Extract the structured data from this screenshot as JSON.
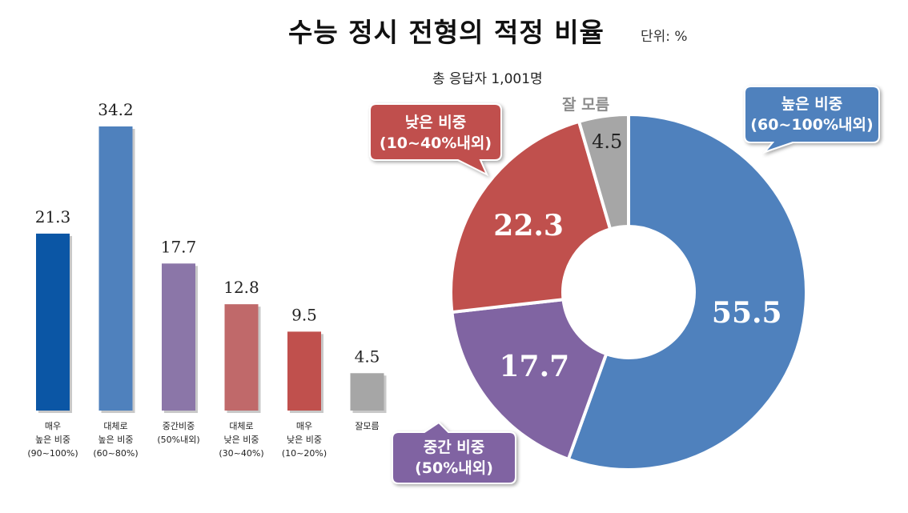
{
  "header": {
    "title": "수능 정시 전형의 적정 비율",
    "unit": "단위: %",
    "respondents": "총 응답자 1,001명"
  },
  "chart_data": [
    {
      "type": "bar",
      "categories": [
        [
          "매우",
          "높은 비중",
          "(90~100%)"
        ],
        [
          "대체로",
          "높은 비중",
          "(60~80%)"
        ],
        [
          "중간비중",
          "(50%내외)"
        ],
        [
          "대체로",
          "낮은 비중",
          "(30~40%)"
        ],
        [
          "매우",
          "낮은 비중",
          "(10~20%)"
        ],
        [
          "잘모름"
        ]
      ],
      "values": [
        21.3,
        34.2,
        17.7,
        12.8,
        9.5,
        4.5
      ],
      "value_labels": [
        "21.3",
        "34.2",
        "17.7",
        "12.8",
        "9.5",
        "4.5"
      ],
      "colors": [
        "#0b56a5",
        "#4f81bd",
        "#8b76a8",
        "#c0696a",
        "#c0504d",
        "#a6a6a6"
      ],
      "ylim": [
        0,
        40
      ]
    },
    {
      "type": "pie",
      "donut": true,
      "labels": [
        "높은 비중 (60~100%내외)",
        "중간 비중 (50%내외)",
        "낮은 비중 (10~40%내외)",
        "잘 모름"
      ],
      "values": [
        55.5,
        17.7,
        22.3,
        4.5
      ],
      "value_labels": [
        "55.5",
        "17.7",
        "22.3",
        "4.5"
      ],
      "colors": [
        "#4f81bd",
        "#8064a2",
        "#c0504d",
        "#a6a6a6"
      ],
      "callouts": {
        "high": [
          "높은 비중",
          "(60~100%내외)"
        ],
        "mid": [
          "중간 비중",
          "(50%내외)"
        ],
        "low": [
          "낮은 비중",
          "(10~40%내외)"
        ],
        "dontknow": "잘 모름"
      }
    }
  ]
}
